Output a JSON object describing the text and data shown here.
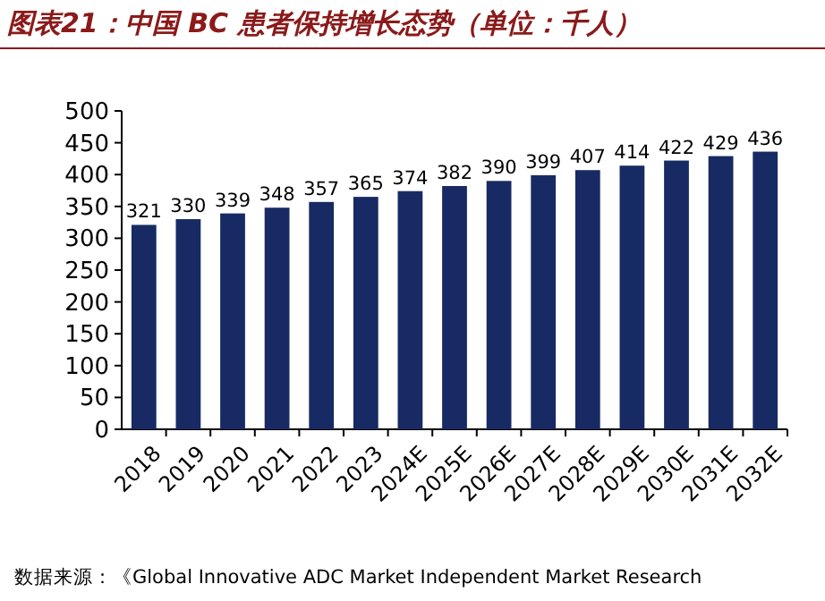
{
  "chart_data": {
    "type": "bar",
    "title": "图表21：中国 BC 患者保持增长态势（单位：千人）",
    "categories": [
      "2018",
      "2019",
      "2020",
      "2021",
      "2022",
      "2023",
      "2024E",
      "2025E",
      "2026E",
      "2027E",
      "2028E",
      "2029E",
      "2030E",
      "2031E",
      "2032E"
    ],
    "values": [
      321,
      330,
      339,
      348,
      357,
      365,
      374,
      382,
      390,
      399,
      407,
      414,
      422,
      429,
      436
    ],
    "color": "#172a63",
    "ylim": [
      0,
      500
    ],
    "yticks": [
      0,
      50,
      100,
      150,
      200,
      250,
      300,
      350,
      400,
      450,
      500
    ],
    "data_labels": true,
    "annotations": [
      "数据来源：《Global Innovative ADC Market Independent Market Research"
    ]
  }
}
